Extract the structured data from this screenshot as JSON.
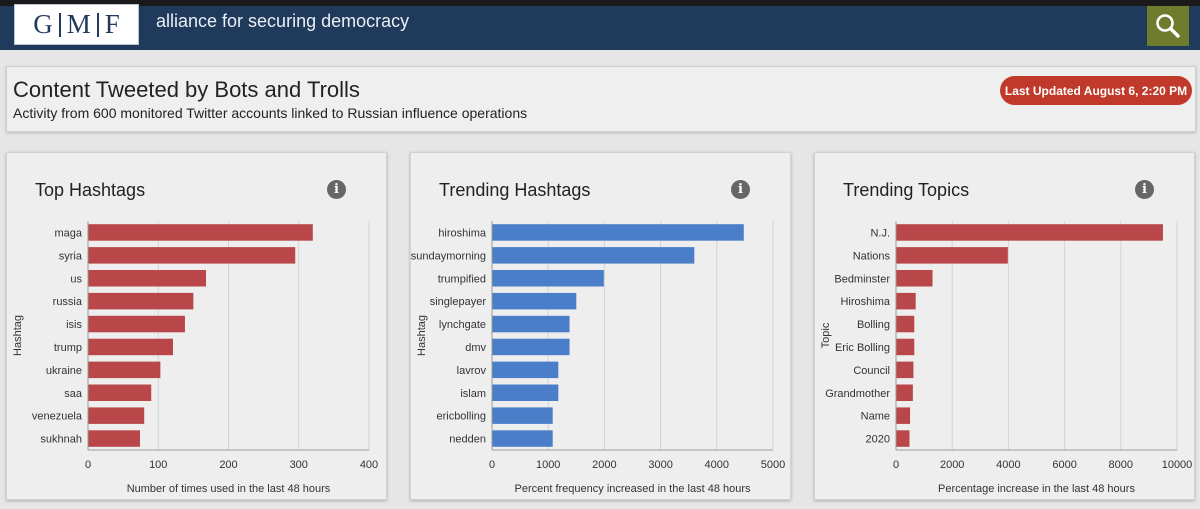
{
  "nav": {
    "logo_letters": [
      "G",
      "M",
      "F"
    ],
    "brand": "alliance for securing democracy",
    "search_icon": "search-icon",
    "colors": {
      "navbar": "#1f3a5a",
      "search": "#6f7b2d"
    }
  },
  "header": {
    "title": "Content Tweeted by Bots and Trolls",
    "subtitle": "Activity from 600 monitored Twitter accounts linked to Russian influence operations",
    "updated": "Last Updated August 6, 2:20 PM",
    "badge_color": "#c0392b"
  },
  "panels": [
    {
      "title": "Top Hashtags",
      "info_icon": "info-icon"
    },
    {
      "title": "Trending Hashtags",
      "info_icon": "info-icon"
    },
    {
      "title": "Trending Topics",
      "info_icon": "info-icon"
    }
  ],
  "chart_data": [
    {
      "type": "bar",
      "orientation": "horizontal",
      "color": "#b9474a",
      "categories": [
        "maga",
        "syria",
        "us",
        "russia",
        "isis",
        "trump",
        "ukraine",
        "saa",
        "venezuela",
        "sukhnah"
      ],
      "values": [
        320,
        295,
        168,
        150,
        138,
        121,
        103,
        90,
        80,
        74
      ],
      "xlabel": "Number of times used in the last 48 hours",
      "ylabel": "Hashtag",
      "xlim": [
        0,
        400
      ],
      "xticks": [
        0,
        100,
        200,
        300,
        400
      ],
      "grid": true
    },
    {
      "type": "bar",
      "orientation": "horizontal",
      "color": "#4a7ec9",
      "categories": [
        "hiroshima",
        "sundaymorning",
        "trumpified",
        "singlepayer",
        "lynchgate",
        "dmv",
        "lavrov",
        "islam",
        "ericbolling",
        "nedden"
      ],
      "values": [
        4480,
        3600,
        1990,
        1500,
        1380,
        1380,
        1180,
        1180,
        1080,
        1080
      ],
      "xlabel": "Percent frequency increased in the last 48 hours",
      "ylabel": "Hashtag",
      "xlim": [
        0,
        5000
      ],
      "xticks": [
        0,
        1000,
        2000,
        3000,
        4000,
        5000
      ],
      "grid": true
    },
    {
      "type": "bar",
      "orientation": "horizontal",
      "color": "#b9474a",
      "categories": [
        "N.J.",
        "Nations",
        "Bedminster",
        "Hiroshima",
        "Bolling",
        "Eric Bolling",
        "Council",
        "Grandmother",
        "Name",
        "2020"
      ],
      "values": [
        9500,
        3980,
        1300,
        700,
        650,
        650,
        620,
        600,
        500,
        480
      ],
      "xlabel": "Percentage increase in the last 48 hours",
      "ylabel": "Topic",
      "xlim": [
        0,
        10000
      ],
      "xticks": [
        0,
        2000,
        4000,
        6000,
        8000,
        10000
      ],
      "grid": true
    }
  ]
}
